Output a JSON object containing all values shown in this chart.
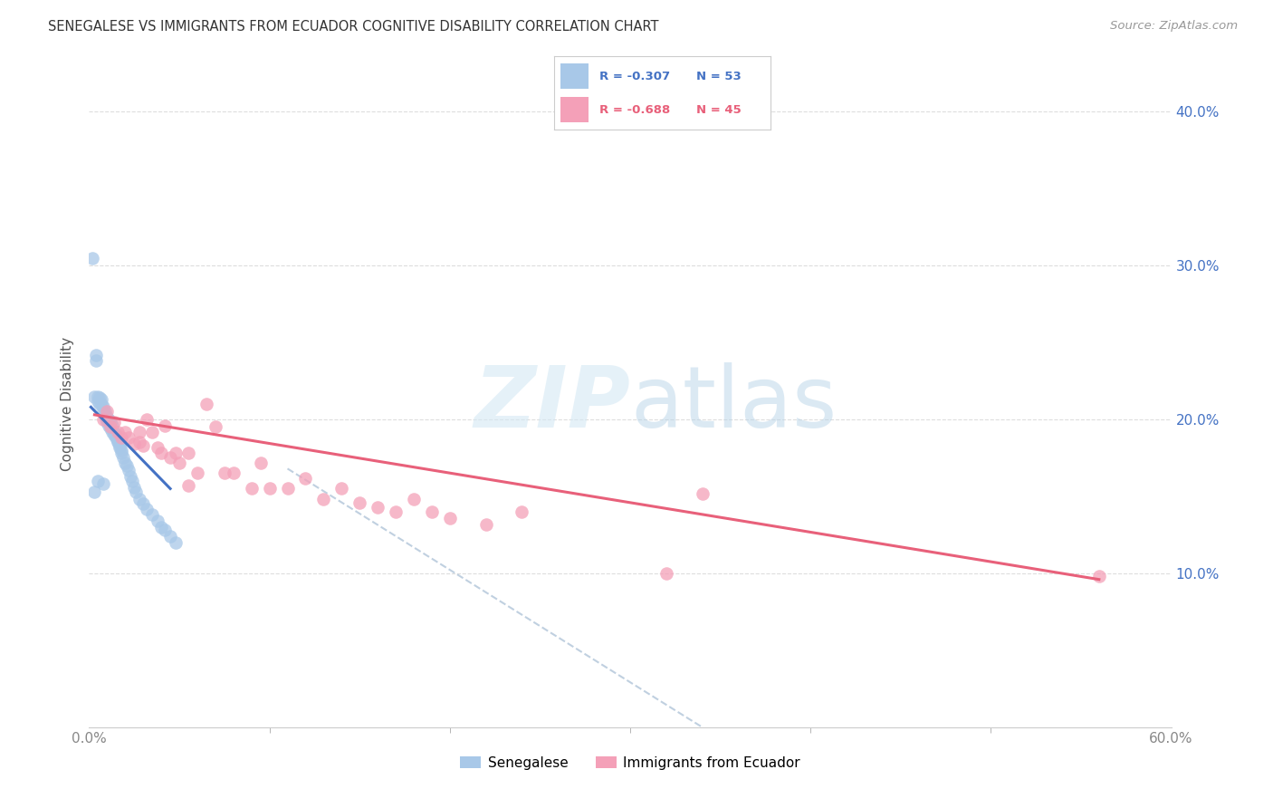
{
  "title": "SENEGALESE VS IMMIGRANTS FROM ECUADOR COGNITIVE DISABILITY CORRELATION CHART",
  "source": "Source: ZipAtlas.com",
  "ylabel": "Cognitive Disability",
  "legend_label1": "Senegalese",
  "legend_label2": "Immigrants from Ecuador",
  "r1": -0.307,
  "n1": 53,
  "r2": -0.688,
  "n2": 45,
  "color_blue": "#a8c8e8",
  "color_blue_line": "#4472c4",
  "color_pink": "#f4a0b8",
  "color_pink_line": "#e8607a",
  "color_dashed": "#c0d0e0",
  "xlim": [
    0.0,
    0.6
  ],
  "ylim": [
    0.0,
    0.42
  ],
  "yticks": [
    0.1,
    0.2,
    0.3,
    0.4
  ],
  "blue_scatter_x": [
    0.002,
    0.003,
    0.004,
    0.004,
    0.005,
    0.005,
    0.006,
    0.006,
    0.007,
    0.007,
    0.008,
    0.008,
    0.009,
    0.009,
    0.01,
    0.01,
    0.01,
    0.011,
    0.011,
    0.012,
    0.012,
    0.013,
    0.013,
    0.014,
    0.014,
    0.015,
    0.015,
    0.016,
    0.016,
    0.017,
    0.017,
    0.018,
    0.018,
    0.019,
    0.02,
    0.021,
    0.022,
    0.023,
    0.024,
    0.025,
    0.026,
    0.028,
    0.03,
    0.032,
    0.035,
    0.038,
    0.04,
    0.042,
    0.045,
    0.048,
    0.003,
    0.005,
    0.008
  ],
  "blue_scatter_y": [
    0.305,
    0.215,
    0.242,
    0.238,
    0.215,
    0.212,
    0.214,
    0.21,
    0.213,
    0.21,
    0.208,
    0.205,
    0.205,
    0.202,
    0.202,
    0.2,
    0.198,
    0.2,
    0.196,
    0.198,
    0.194,
    0.196,
    0.192,
    0.192,
    0.19,
    0.19,
    0.188,
    0.186,
    0.185,
    0.183,
    0.182,
    0.18,
    0.178,
    0.175,
    0.172,
    0.17,
    0.167,
    0.163,
    0.16,
    0.156,
    0.153,
    0.148,
    0.145,
    0.142,
    0.138,
    0.134,
    0.13,
    0.128,
    0.124,
    0.12,
    0.153,
    0.16,
    0.158
  ],
  "pink_scatter_x": [
    0.008,
    0.01,
    0.012,
    0.014,
    0.016,
    0.018,
    0.02,
    0.022,
    0.025,
    0.028,
    0.03,
    0.032,
    0.035,
    0.038,
    0.04,
    0.042,
    0.045,
    0.048,
    0.05,
    0.055,
    0.06,
    0.065,
    0.07,
    0.075,
    0.08,
    0.09,
    0.095,
    0.1,
    0.11,
    0.12,
    0.13,
    0.14,
    0.15,
    0.16,
    0.17,
    0.18,
    0.19,
    0.2,
    0.22,
    0.24,
    0.32,
    0.34,
    0.56,
    0.028,
    0.055
  ],
  "pink_scatter_y": [
    0.2,
    0.205,
    0.195,
    0.198,
    0.192,
    0.188,
    0.192,
    0.188,
    0.184,
    0.185,
    0.183,
    0.2,
    0.192,
    0.182,
    0.178,
    0.196,
    0.175,
    0.178,
    0.172,
    0.178,
    0.165,
    0.21,
    0.195,
    0.165,
    0.165,
    0.155,
    0.172,
    0.155,
    0.155,
    0.162,
    0.148,
    0.155,
    0.146,
    0.143,
    0.14,
    0.148,
    0.14,
    0.136,
    0.132,
    0.14,
    0.1,
    0.152,
    0.098,
    0.192,
    0.157
  ],
  "blue_line_x": [
    0.001,
    0.045
  ],
  "blue_line_y": [
    0.208,
    0.155
  ],
  "pink_line_x": [
    0.003,
    0.56
  ],
  "pink_line_y": [
    0.203,
    0.096
  ],
  "dashed_line_x": [
    0.11,
    0.34
  ],
  "dashed_line_y": [
    0.168,
    0.0
  ]
}
